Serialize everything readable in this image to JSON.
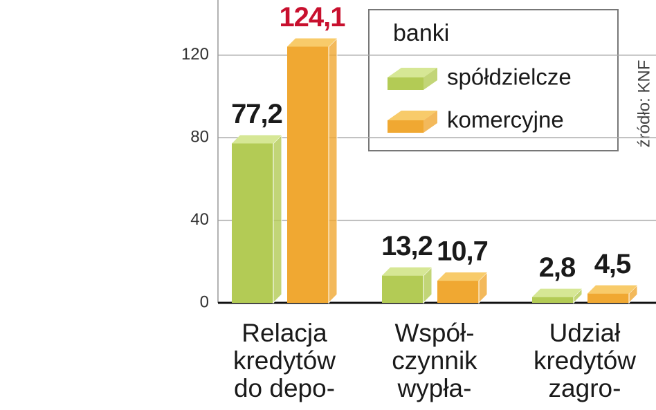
{
  "chart_data": {
    "type": "bar",
    "categories": [
      "Relacja kredytów do depo-",
      "Współ- czynnik wypła-",
      "Udział kredytów zagro-"
    ],
    "legend_title": "banki",
    "source": "źródło: KNF",
    "series": [
      {
        "name": "spółdzielcze",
        "color": "#b3cb55",
        "top_color": "#d6e795",
        "values": [
          77.2,
          13.2,
          2.8
        ],
        "value_labels": [
          "77,2",
          "13,2",
          "2,8"
        ],
        "value_label_colors": [
          "#1a1a1a",
          "#1a1a1a",
          "#1a1a1a"
        ]
      },
      {
        "name": "komercyjne",
        "color": "#f0a832",
        "top_color": "#f8cb6a",
        "values": [
          124.1,
          10.7,
          4.5
        ],
        "value_labels": [
          "124,1",
          "10,7",
          "4,5"
        ],
        "value_label_colors": [
          "#c8102e",
          "#1a1a1a",
          "#1a1a1a"
        ]
      }
    ],
    "ylim": [
      0,
      140
    ],
    "yticks": [
      0,
      40,
      80,
      120
    ],
    "grid": true,
    "legend": "top-right"
  }
}
